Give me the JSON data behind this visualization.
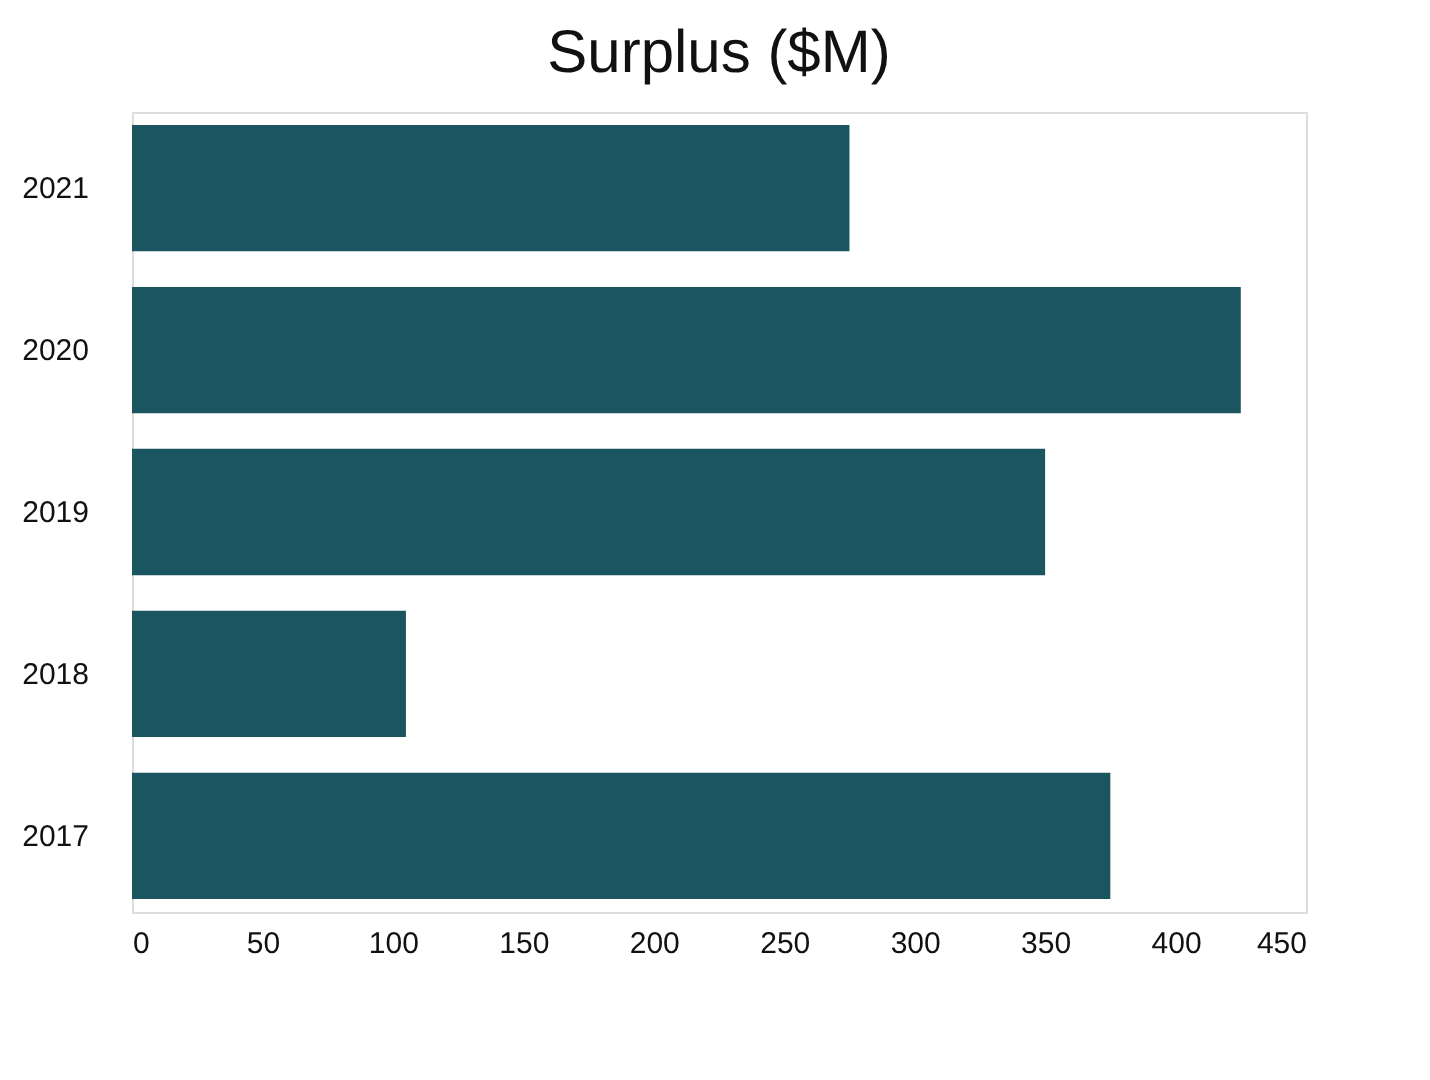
{
  "chart_data": {
    "type": "bar",
    "orientation": "horizontal",
    "title": "Surplus ($M)",
    "categories": [
      "2021",
      "2020",
      "2019",
      "2018",
      "2017"
    ],
    "values": [
      275,
      425,
      350,
      105,
      375
    ],
    "color": "#1a5560",
    "xlim": [
      0,
      450
    ],
    "xticks": [
      0,
      50,
      100,
      150,
      200,
      250,
      300,
      350,
      400,
      450
    ],
    "grid": false
  }
}
